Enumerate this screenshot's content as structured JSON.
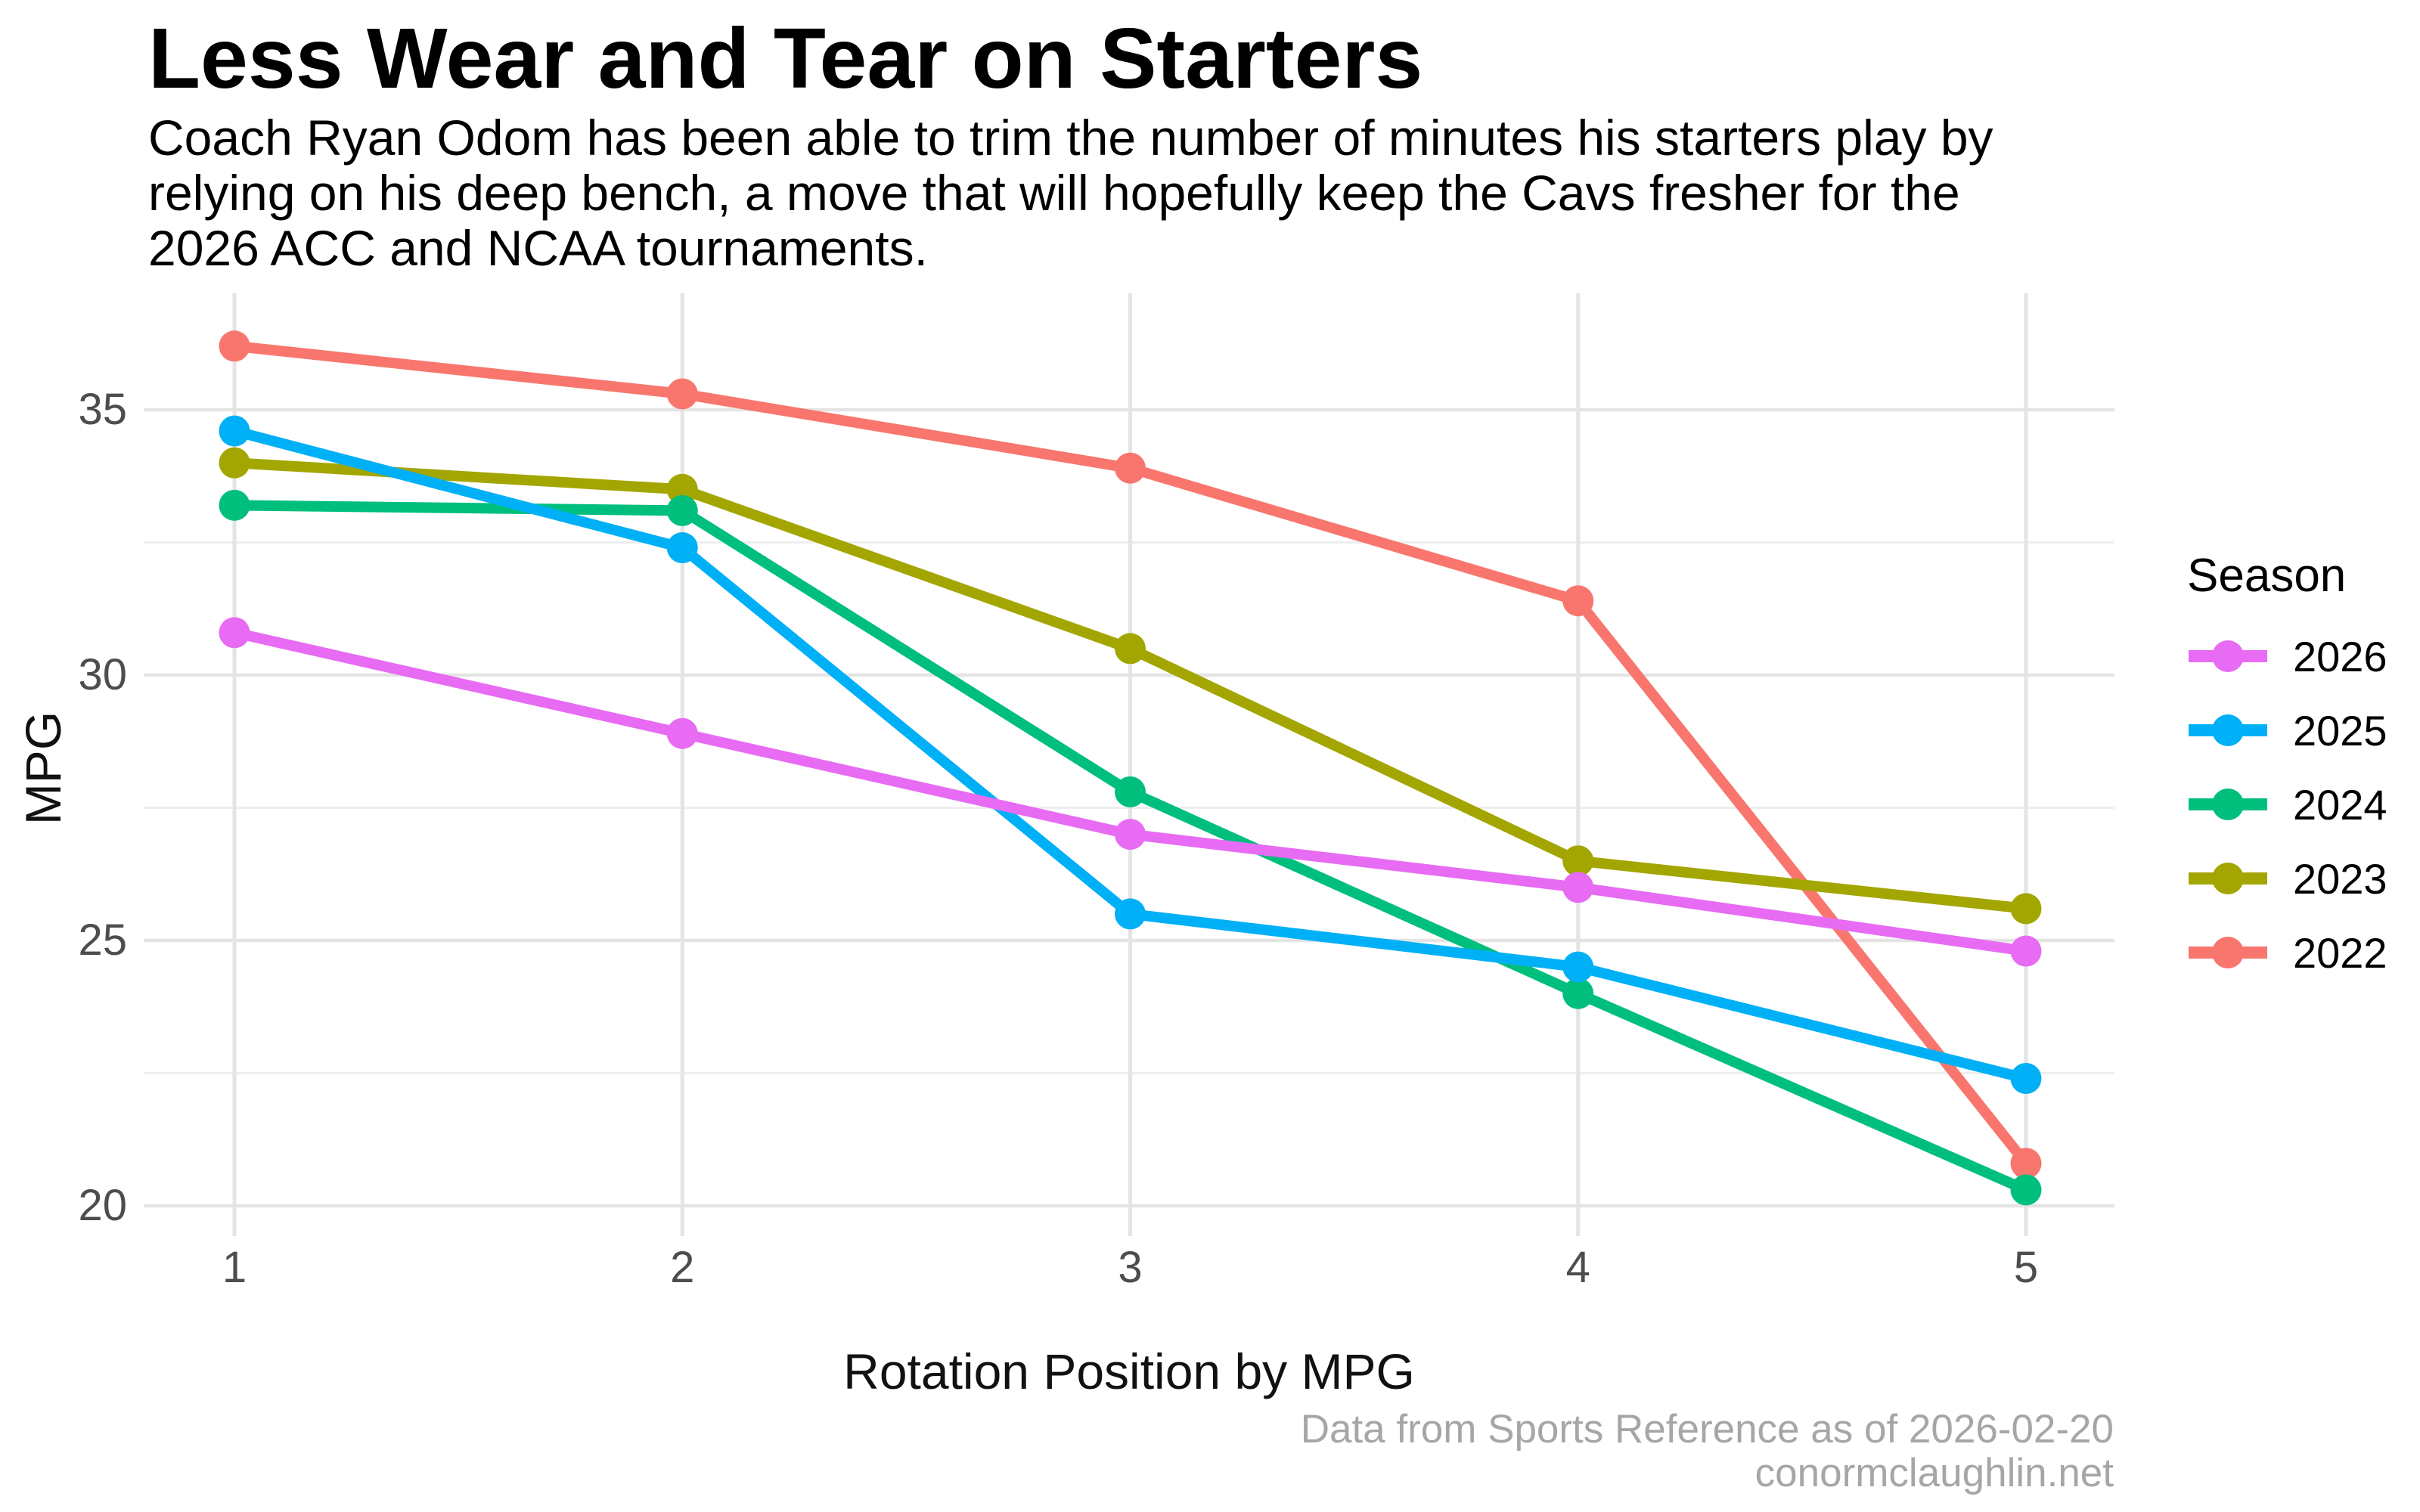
{
  "header": {
    "title": "Less Wear and Tear on Starters",
    "subtitle_lines": [
      "Coach Ryan Odom has been able to trim the number of minutes his starters play by",
      "relying on his deep bench, a move that will hopefully keep the Cavs fresher for the",
      "2026 ACC and NCAA tournaments."
    ]
  },
  "chart_data": {
    "type": "line",
    "x": [
      1,
      2,
      3,
      4,
      5
    ],
    "xlabel": "Rotation Position by MPG",
    "ylabel": "MPG",
    "yticks": [
      20,
      25,
      30,
      35
    ],
    "yticks_minor": [
      22.5,
      27.5,
      32.5
    ],
    "xlim": [
      0.8,
      5.2
    ],
    "ylim": [
      19.4,
      37.2
    ],
    "grid": true,
    "background": "#ffffff",
    "grid_major_color": "#e4e4e4",
    "grid_minor_color": "#eeeeee",
    "series": [
      {
        "name": "2022",
        "color": "#F8766D",
        "values": [
          36.2,
          35.3,
          33.9,
          31.4,
          20.8
        ]
      },
      {
        "name": "2023",
        "color": "#A3A500",
        "values": [
          34.0,
          33.5,
          30.5,
          26.5,
          25.6
        ]
      },
      {
        "name": "2024",
        "color": "#00BF7D",
        "values": [
          33.2,
          33.1,
          27.8,
          24.0,
          20.3
        ]
      },
      {
        "name": "2025",
        "color": "#00B0F6",
        "values": [
          34.6,
          32.4,
          25.5,
          24.5,
          22.4
        ]
      },
      {
        "name": "2026",
        "color": "#E76BF3",
        "values": [
          30.8,
          28.9,
          27.0,
          26.0,
          24.8
        ]
      }
    ],
    "legend": {
      "title": "Season",
      "position": "right",
      "entries_top_to_bottom": [
        "2026",
        "2025",
        "2024",
        "2023",
        "2022"
      ]
    }
  },
  "caption": {
    "line1": "Data from Sports Reference as of 2026-02-20",
    "line2": "conormclaughlin.net"
  }
}
